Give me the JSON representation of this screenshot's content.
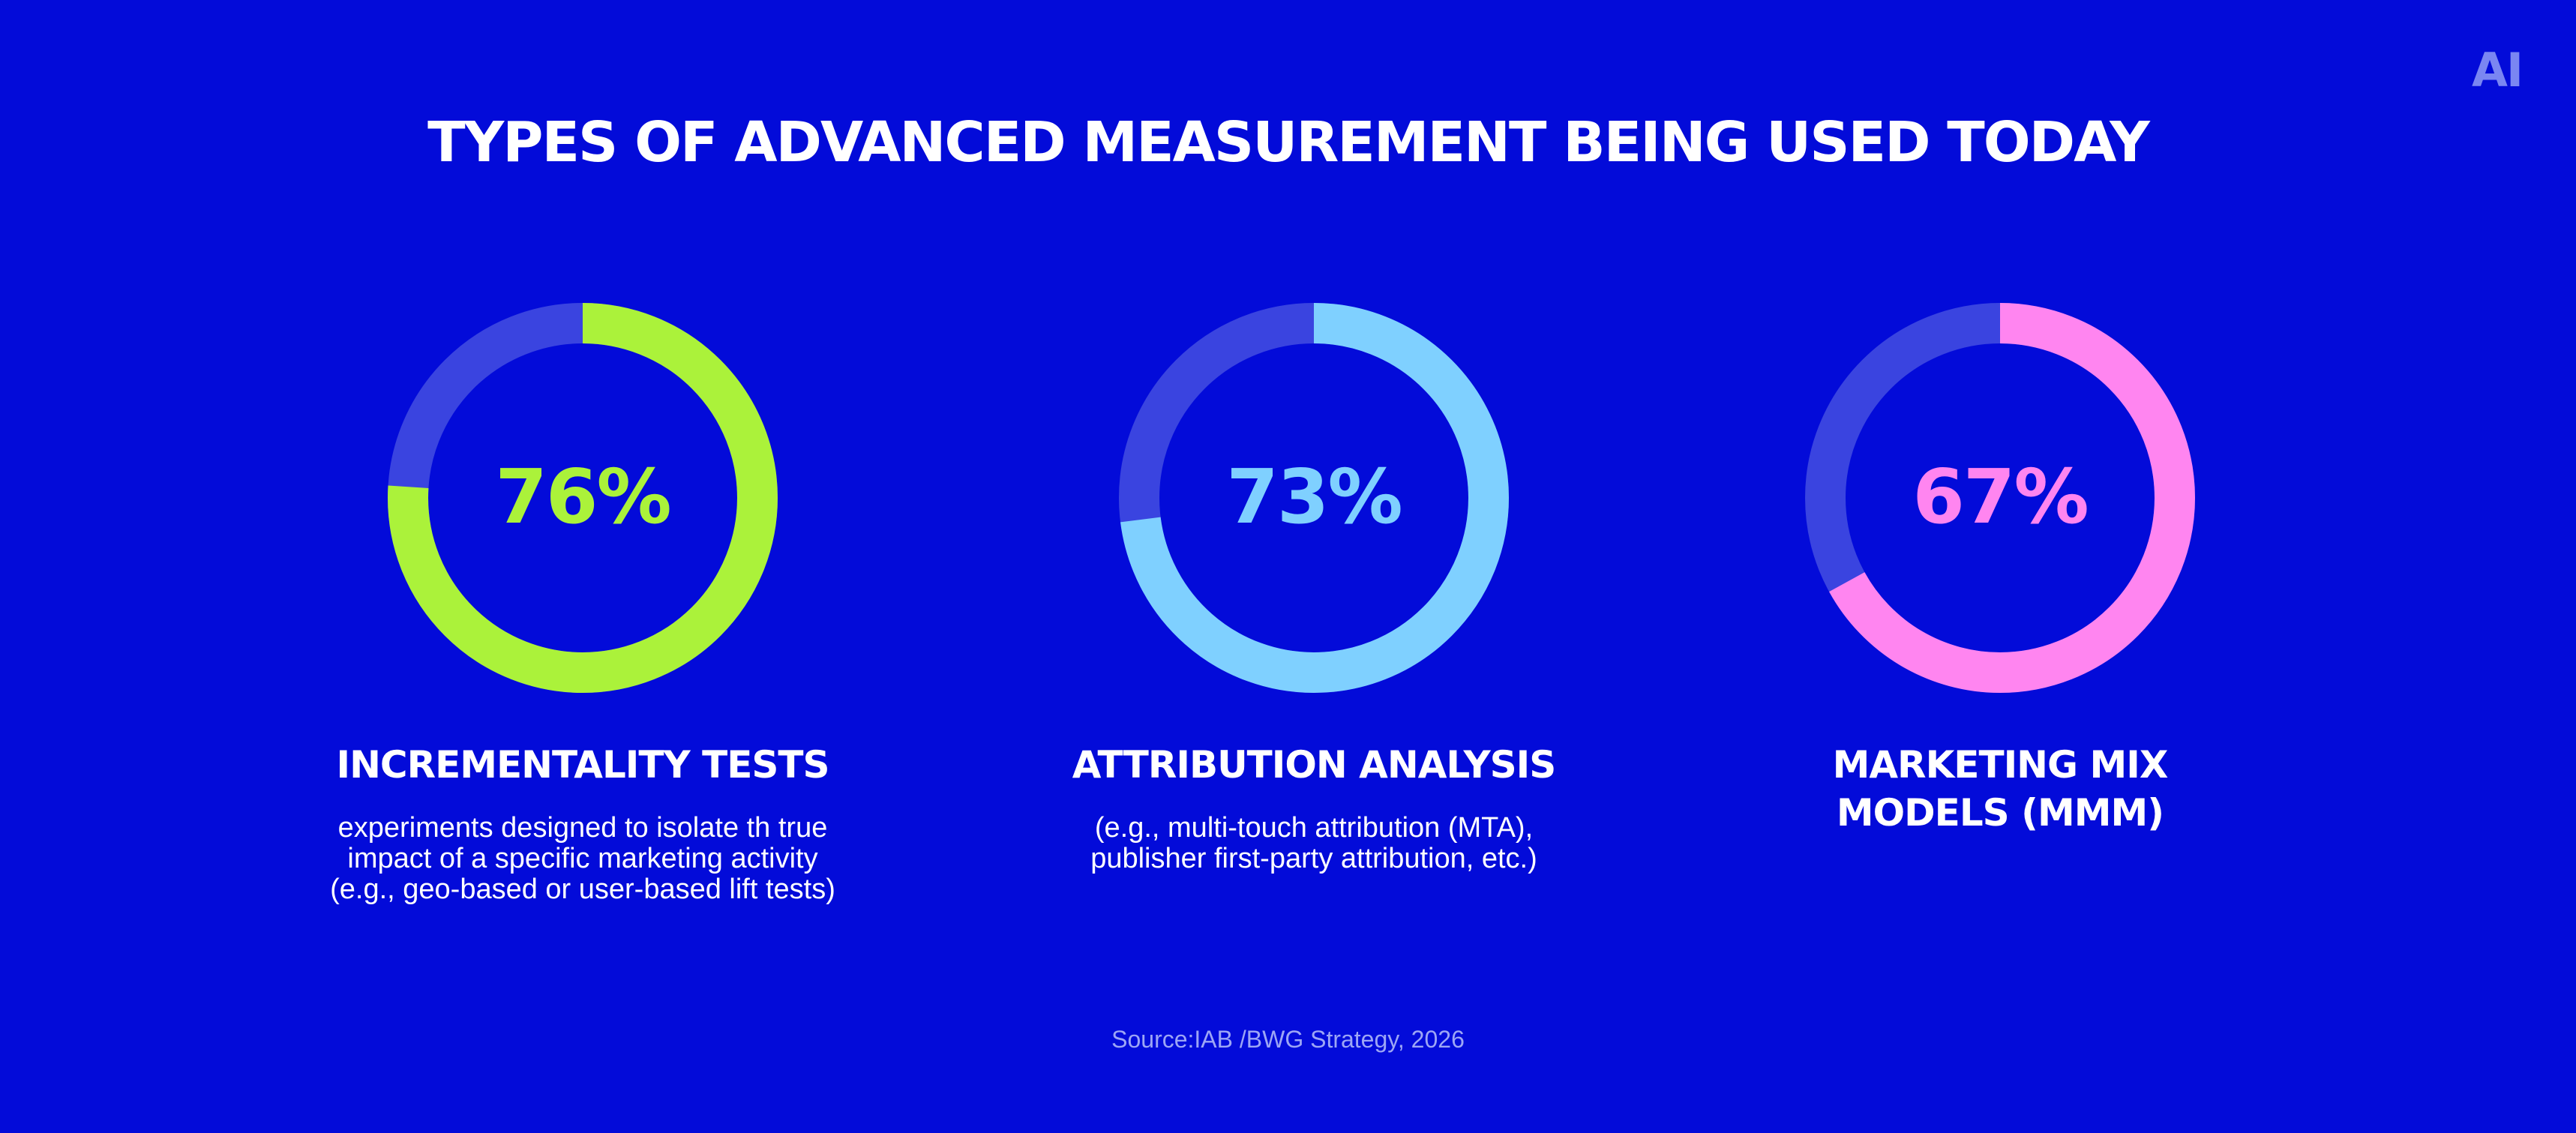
{
  "logo": "AI",
  "title": "TYPES OF ADVANCED MEASUREMENT BEING USED TODAY",
  "colors": {
    "background": "#030BD9",
    "track": "#3A44E0"
  },
  "chart_data": {
    "type": "pie",
    "title": "TYPES OF ADVANCED MEASUREMENT BEING USED TODAY",
    "categories": [
      "INCREMENTALITY TESTS",
      "ATTRIBUTION ANALYSIS",
      "MARKETING MIX MODELS (MMM)"
    ],
    "values": [
      76,
      73,
      67
    ],
    "unit": "%",
    "charts": [
      {
        "label": "INCREMENTALITY TESTS",
        "value": 76,
        "value_label": "76%",
        "color": "#ABF23A",
        "description": "experiments designed to isolate th true impact of a specific marketing activity (e.g., geo-based or user-based lift tests)"
      },
      {
        "label": "ATTRIBUTION ANALYSIS",
        "value": 73,
        "value_label": "73%",
        "color": "#7FD0FF",
        "description": "(e.g., multi-touch attribution (MTA), publisher first-party attribution, etc.)"
      },
      {
        "label": "MARKETING MIX MODELS (MMM)",
        "value": 67,
        "value_label": "67%",
        "color": "#FF85F0",
        "description": ""
      }
    ]
  },
  "source": "Source:IAB /BWG Strategy, 2026"
}
